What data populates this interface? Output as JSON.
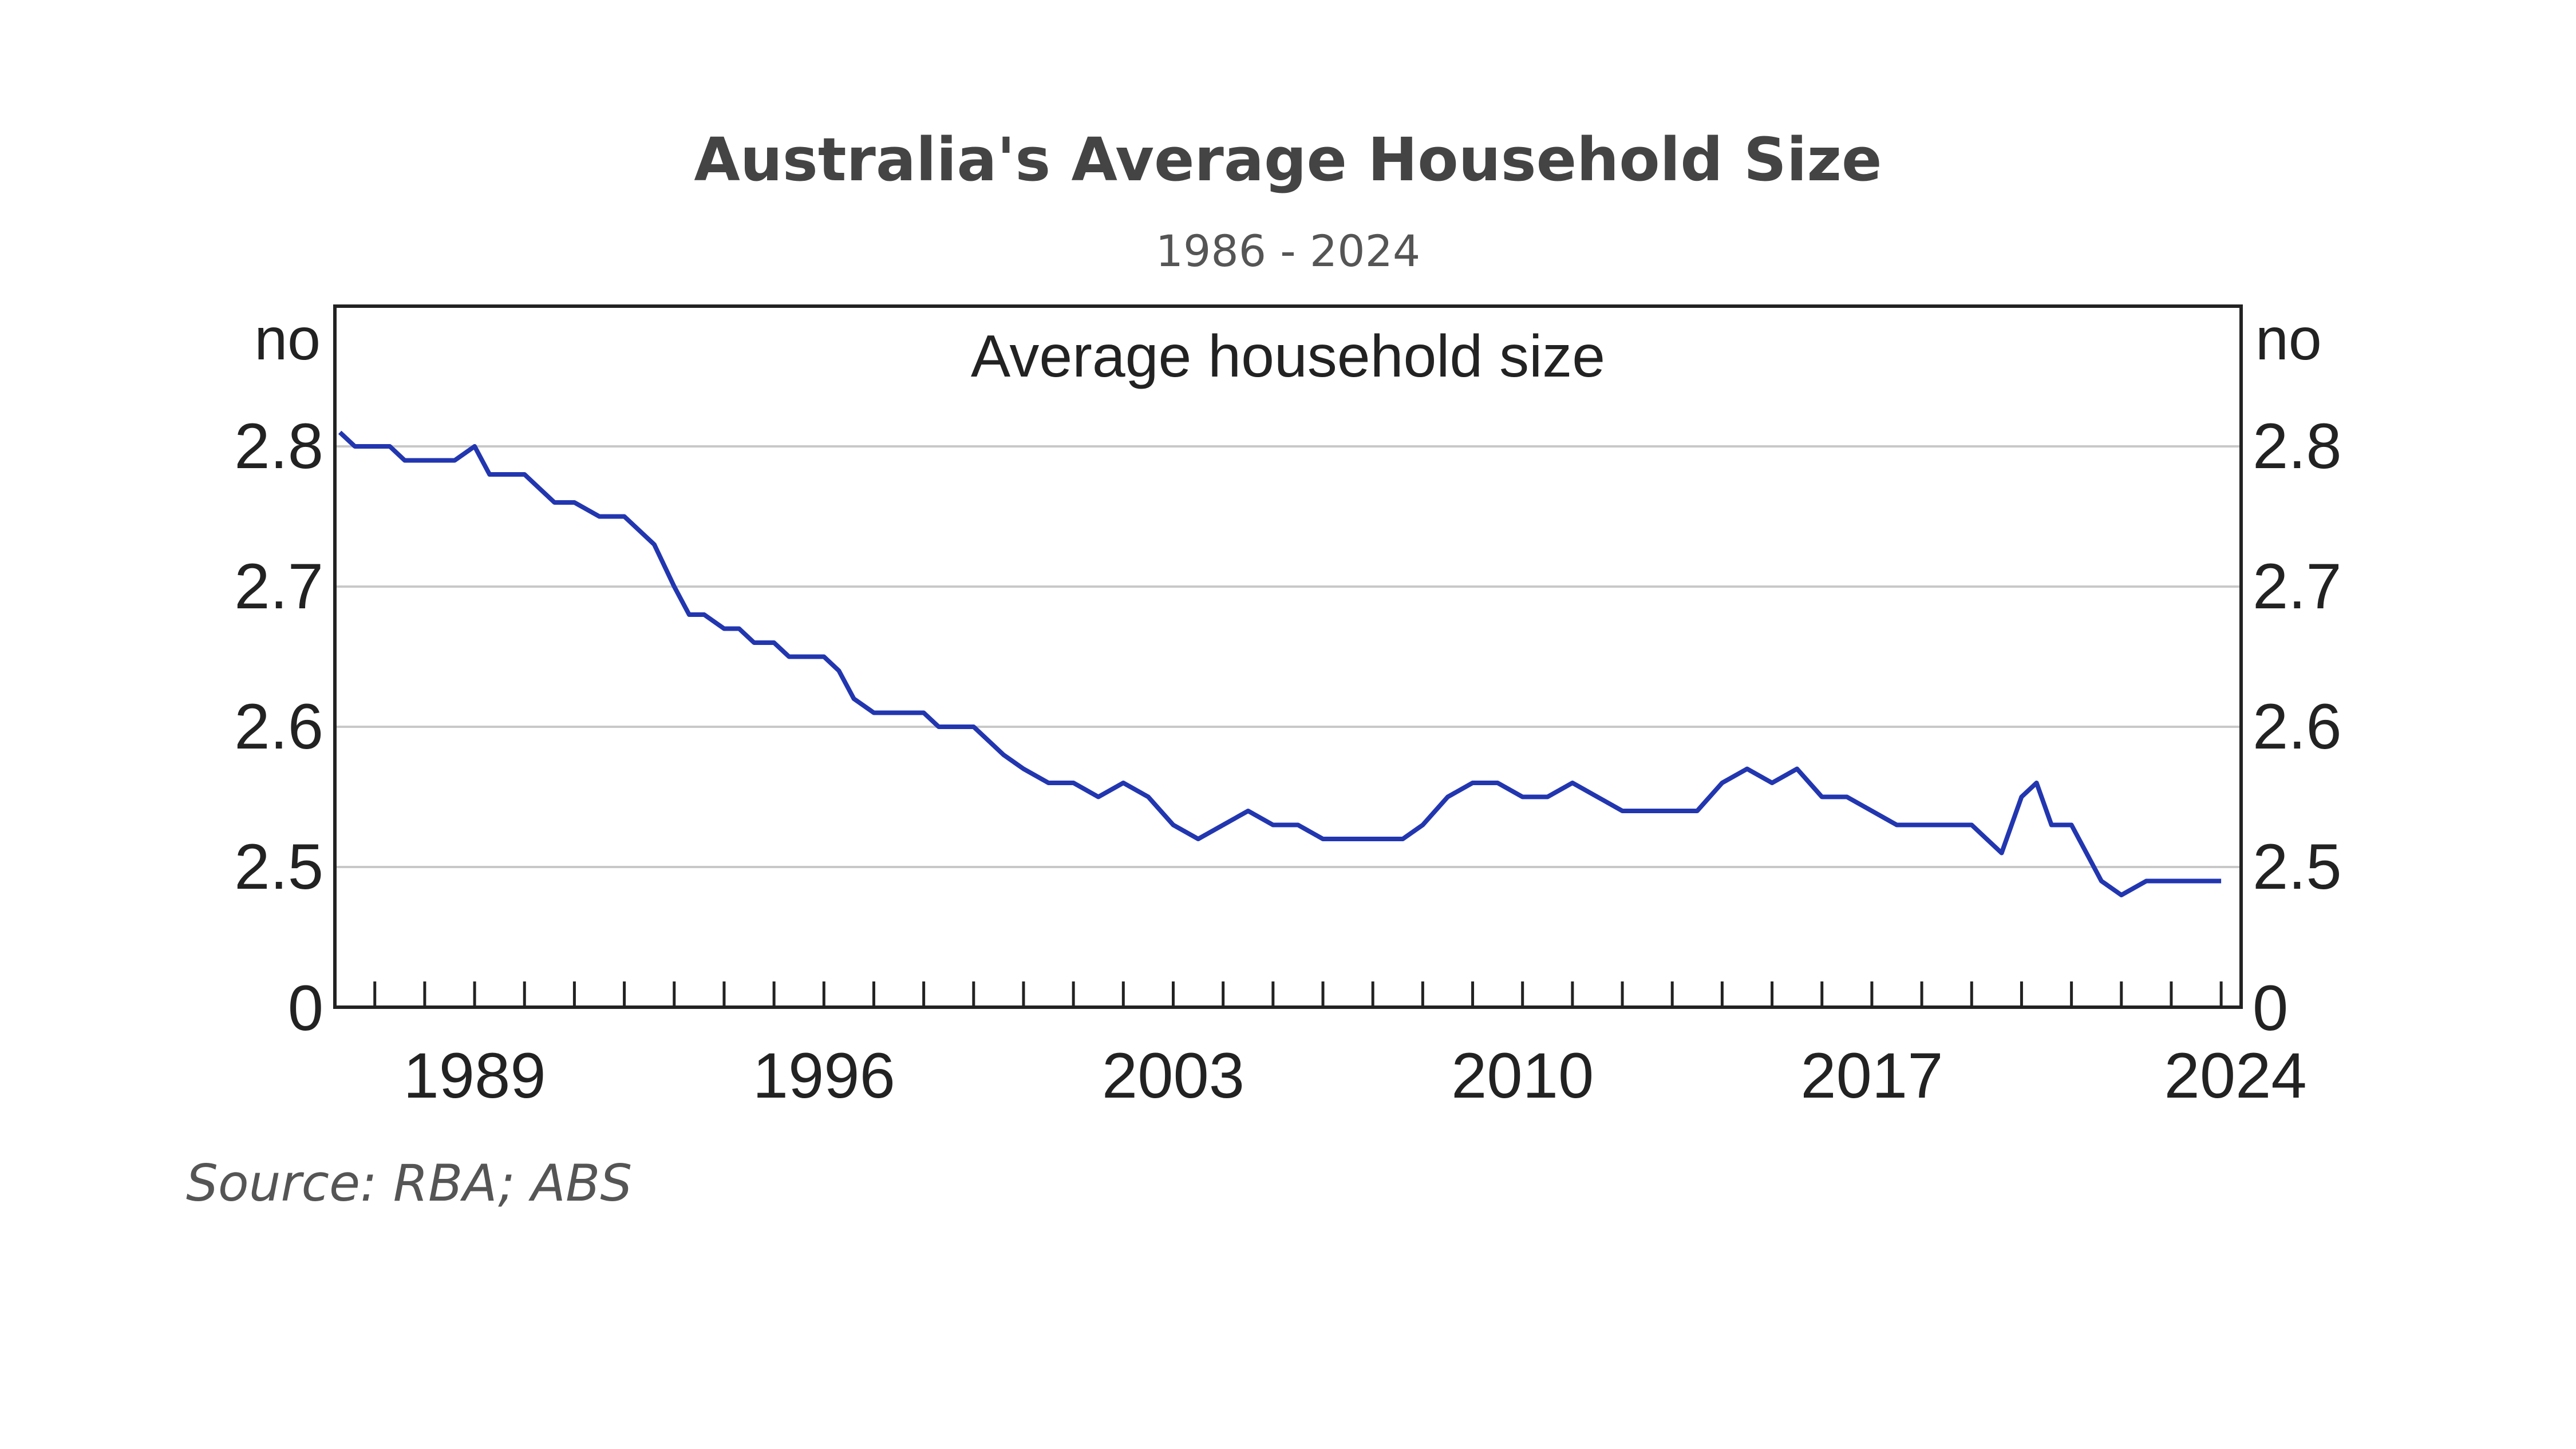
{
  "title": "Australia's Average Household Size",
  "subtitle": "1986 - 2024",
  "source": "Source: RBA; ABS",
  "colors": {
    "line": "#2236b0",
    "grid": "#c8c8c8",
    "frame": "#222222",
    "title": "#444444"
  },
  "chart_data": {
    "type": "line",
    "title": "Average household size",
    "ylabel_left": "no",
    "ylabel_right": "no",
    "y_ticks": [
      "0",
      "2.5",
      "2.6",
      "2.7",
      "2.8"
    ],
    "y_axis_break": "axis runs from 0 with a break; visible range 2.4 to 2.84",
    "ylim": [
      2.4,
      2.84
    ],
    "xlim": [
      1986.2,
      2024.4
    ],
    "x_ticks": [
      "1989",
      "1996",
      "2003",
      "2010",
      "2017",
      "2024"
    ],
    "grid": "horizontal at 2.5, 2.6, 2.7, 2.8",
    "legend": "none",
    "series": [
      {
        "x": [
          1986.3,
          1986.6,
          1987.0,
          1987.3,
          1987.6,
          1988.0,
          1988.3,
          1988.6,
          1989.0,
          1989.3,
          1989.6,
          1990.0,
          1990.3,
          1990.6,
          1991.0,
          1991.5,
          1992.0,
          1992.3,
          1992.6,
          1993.0,
          1993.3,
          1993.6,
          1994.0,
          1994.3,
          1994.6,
          1995.0,
          1995.3,
          1995.6,
          1996.0,
          1996.3,
          1996.6,
          1997.0,
          1997.5,
          1998.0,
          1998.3,
          1998.6,
          1999.0,
          1999.3,
          1999.6,
          2000.0,
          2000.5,
          2001.0,
          2001.5,
          2002.0,
          2002.5,
          2003.0,
          2003.5,
          2004.0,
          2004.5,
          2005.0,
          2005.5,
          2006.0,
          2006.5,
          2007.0,
          2007.3,
          2007.6,
          2008.0,
          2008.5,
          2009.0,
          2009.5,
          2010.0,
          2010.5,
          2011.0,
          2011.5,
          2012.0,
          2012.5,
          2013.0,
          2013.5,
          2014.0,
          2014.5,
          2015.0,
          2015.5,
          2016.0,
          2016.5,
          2017.0,
          2017.5,
          2018.0,
          2018.5,
          2019.0,
          2019.3,
          2019.6,
          2020.0,
          2020.3,
          2020.6,
          2021.0,
          2021.3,
          2021.6,
          2022.0,
          2022.5,
          2023.0,
          2023.3,
          2023.6,
          2024.0
        ],
        "y": [
          2.81,
          2.8,
          2.8,
          2.8,
          2.79,
          2.79,
          2.79,
          2.79,
          2.8,
          2.78,
          2.78,
          2.78,
          2.77,
          2.76,
          2.76,
          2.75,
          2.75,
          2.74,
          2.73,
          2.7,
          2.68,
          2.68,
          2.67,
          2.67,
          2.66,
          2.66,
          2.65,
          2.65,
          2.65,
          2.64,
          2.62,
          2.61,
          2.61,
          2.61,
          2.6,
          2.6,
          2.6,
          2.59,
          2.58,
          2.57,
          2.56,
          2.56,
          2.55,
          2.56,
          2.55,
          2.53,
          2.52,
          2.53,
          2.54,
          2.53,
          2.53,
          2.52,
          2.52,
          2.52,
          2.52,
          2.52,
          2.53,
          2.55,
          2.56,
          2.56,
          2.55,
          2.55,
          2.56,
          2.55,
          2.54,
          2.54,
          2.54,
          2.54,
          2.56,
          2.57,
          2.56,
          2.57,
          2.55,
          2.55,
          2.54,
          2.53,
          2.53,
          2.53,
          2.53,
          2.52,
          2.51,
          2.55,
          2.56,
          2.53,
          2.53,
          2.51,
          2.49,
          2.48,
          2.49,
          2.49,
          2.49,
          2.49,
          2.49
        ]
      }
    ]
  }
}
